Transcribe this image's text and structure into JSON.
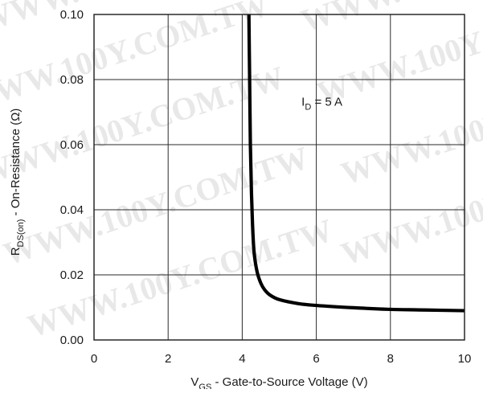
{
  "chart_data": {
    "type": "line",
    "title": "",
    "xlabel": {
      "main": "V",
      "sub": "GS",
      "rest": " -  Gate-to-Source Voltage (V)"
    },
    "ylabel": {
      "main": "R",
      "sub": "DS(on)",
      "rest": "  -   On-Resistance (Ω)"
    },
    "xlim": [
      0,
      10
    ],
    "ylim": [
      0,
      0.1
    ],
    "x_ticks": [
      "0",
      "2",
      "4",
      "6",
      "8",
      "10"
    ],
    "y_ticks": [
      "0.00",
      "0.02",
      "0.04",
      "0.06",
      "0.08",
      "0.10"
    ],
    "grid": true,
    "annotation": {
      "main": "I",
      "sub": "D",
      "rest": " =  5 A",
      "x": 5.6,
      "y": 0.072
    },
    "series": [
      {
        "x": [
          4.18,
          4.2,
          4.22,
          4.25,
          4.28,
          4.32,
          4.4,
          4.5,
          4.6,
          4.75,
          5.0,
          5.5,
          6.0,
          7.0,
          8.0,
          9.0,
          10.0
        ],
        "y": [
          0.1,
          0.08,
          0.06,
          0.045,
          0.035,
          0.027,
          0.021,
          0.0175,
          0.0155,
          0.0138,
          0.0124,
          0.0112,
          0.0106,
          0.0099,
          0.0094,
          0.0092,
          0.009
        ]
      }
    ]
  },
  "watermark": {
    "text": "WWW.100Y.COM.TW"
  },
  "colors": {
    "series": "#000000",
    "grid": "#2a2a2a",
    "watermark": "#d6d6d6"
  }
}
